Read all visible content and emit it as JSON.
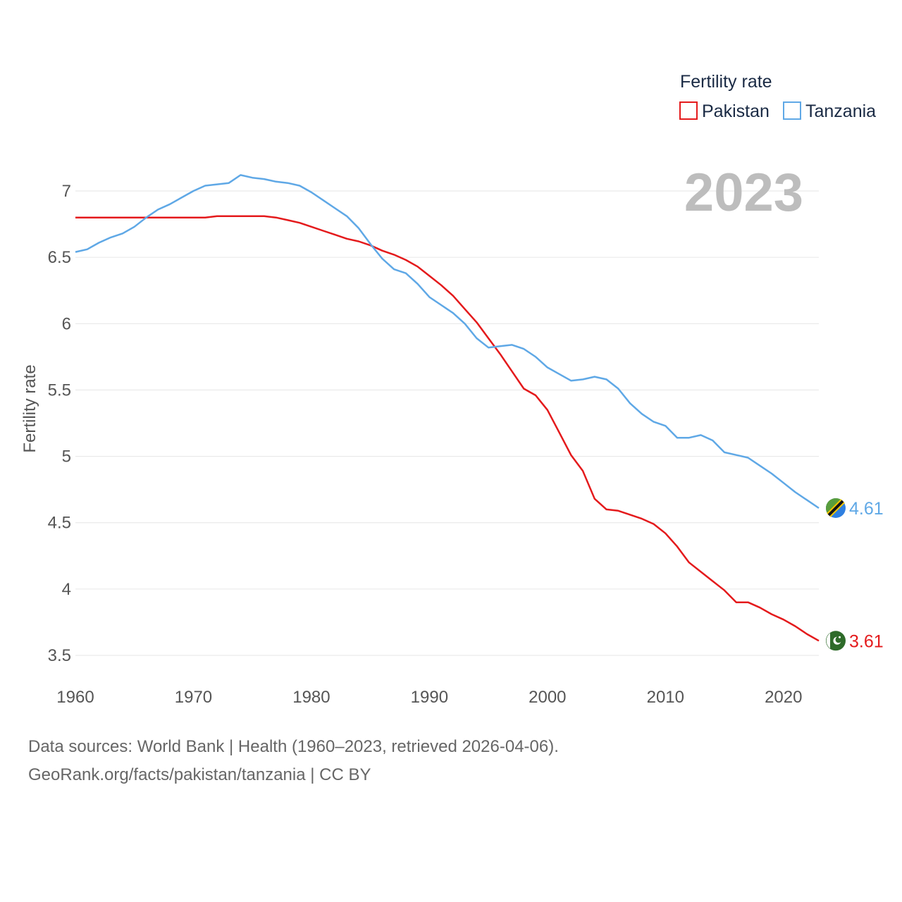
{
  "colors": {
    "pakistan": "#e41a1c",
    "tanzania": "#5fa8e6",
    "grid": "#e6e6e6",
    "text": "#555555"
  },
  "legend": {
    "title": "Fertility rate",
    "items": [
      "Pakistan",
      "Tanzania"
    ]
  },
  "year_display": "2023",
  "footer": {
    "line1": "Data sources: World Bank | Health (1960–2023, retrieved 2026-04-06).",
    "line2": "GeoRank.org/facts/pakistan/tanzania | CC BY"
  },
  "chart_data": {
    "type": "line",
    "title": "",
    "xlabel": "",
    "ylabel": "Fertility rate",
    "xlim": [
      1960,
      2023
    ],
    "ylim": [
      3.5,
      7.25
    ],
    "xticks": [
      1960,
      1970,
      1980,
      1990,
      2000,
      2010,
      2020
    ],
    "yticks": [
      3.5,
      4,
      4.5,
      5,
      5.5,
      6,
      6.5,
      7
    ],
    "x": [
      1960,
      1961,
      1962,
      1963,
      1964,
      1965,
      1966,
      1967,
      1968,
      1969,
      1970,
      1971,
      1972,
      1973,
      1974,
      1975,
      1976,
      1977,
      1978,
      1979,
      1980,
      1981,
      1982,
      1983,
      1984,
      1985,
      1986,
      1987,
      1988,
      1989,
      1990,
      1991,
      1992,
      1993,
      1994,
      1995,
      1996,
      1997,
      1998,
      1999,
      2000,
      2001,
      2002,
      2003,
      2004,
      2005,
      2006,
      2007,
      2008,
      2009,
      2010,
      2011,
      2012,
      2013,
      2014,
      2015,
      2016,
      2017,
      2018,
      2019,
      2020,
      2021,
      2022,
      2023
    ],
    "series": [
      {
        "name": "Pakistan",
        "end_label": "3.61",
        "values": [
          6.8,
          6.8,
          6.8,
          6.8,
          6.8,
          6.8,
          6.8,
          6.8,
          6.8,
          6.8,
          6.8,
          6.8,
          6.81,
          6.81,
          6.81,
          6.81,
          6.81,
          6.8,
          6.78,
          6.76,
          6.73,
          6.7,
          6.67,
          6.64,
          6.62,
          6.59,
          6.55,
          6.52,
          6.48,
          6.43,
          6.36,
          6.29,
          6.21,
          6.11,
          6.01,
          5.89,
          5.77,
          5.64,
          5.51,
          5.46,
          5.35,
          5.18,
          5.01,
          4.89,
          4.68,
          4.6,
          4.59,
          4.56,
          4.53,
          4.49,
          4.42,
          4.32,
          4.2,
          4.13,
          4.06,
          3.99,
          3.9,
          3.9,
          3.86,
          3.81,
          3.77,
          3.72,
          3.66,
          3.61
        ]
      },
      {
        "name": "Tanzania",
        "end_label": "4.61",
        "values": [
          6.54,
          6.56,
          6.61,
          6.65,
          6.68,
          6.73,
          6.8,
          6.86,
          6.9,
          6.95,
          7.0,
          7.04,
          7.05,
          7.06,
          7.12,
          7.1,
          7.09,
          7.07,
          7.06,
          7.04,
          6.99,
          6.93,
          6.87,
          6.81,
          6.72,
          6.6,
          6.49,
          6.41,
          6.38,
          6.3,
          6.2,
          6.14,
          6.08,
          6.0,
          5.89,
          5.82,
          5.83,
          5.84,
          5.81,
          5.75,
          5.67,
          5.62,
          5.57,
          5.58,
          5.6,
          5.58,
          5.51,
          5.4,
          5.32,
          5.26,
          5.23,
          5.14,
          5.14,
          5.16,
          5.12,
          5.03,
          5.01,
          4.99,
          4.93,
          4.87,
          4.8,
          4.73,
          4.67,
          4.61
        ]
      }
    ]
  }
}
